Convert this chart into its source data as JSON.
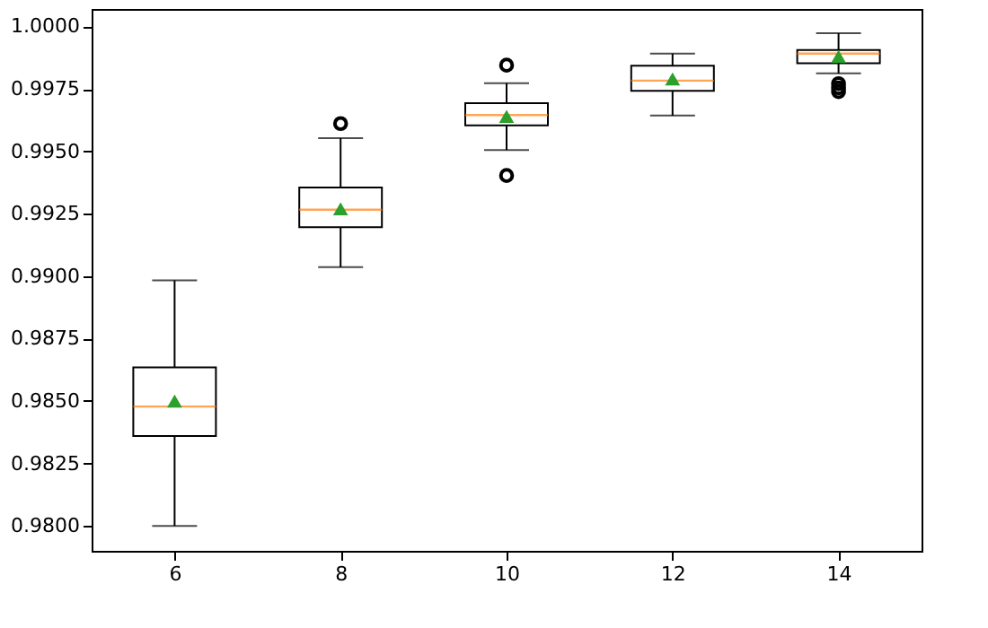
{
  "chart_data": {
    "type": "box",
    "categories": [
      "6",
      "8",
      "10",
      "12",
      "14"
    ],
    "color": "#000000",
    "boxes": [
      {
        "low": 0.98,
        "q1": 0.9836,
        "median": 0.98478,
        "q3": 0.98635,
        "high": 0.98983,
        "mean": 0.985
      },
      {
        "low": 0.99036,
        "q1": 0.99196,
        "median": 0.99266,
        "q3": 0.99355,
        "high": 0.99553,
        "mean": 0.9927,
        "outliers": [
          0.99611
        ]
      },
      {
        "low": 0.99505,
        "q1": 0.99604,
        "median": 0.99645,
        "q3": 0.99693,
        "high": 0.99773,
        "mean": 0.9964,
        "outliers": [
          0.99845,
          0.99403
        ]
      },
      {
        "low": 0.99643,
        "q1": 0.99742,
        "median": 0.99783,
        "q3": 0.99843,
        "high": 0.99891,
        "mean": 0.9979
      },
      {
        "low": 0.99812,
        "q1": 0.99853,
        "median": 0.99891,
        "q3": 0.99906,
        "high": 0.99973,
        "mean": 0.9988,
        "outliers": [
          0.99771,
          0.99754,
          0.99739
        ]
      }
    ],
    "ylim": [
      0.979,
      1.0007
    ],
    "yticks": [
      {
        "value": 0.98,
        "label": "0.9800"
      },
      {
        "value": 0.9825,
        "label": "0.9825"
      },
      {
        "value": 0.985,
        "label": "0.9850"
      },
      {
        "value": 0.9875,
        "label": "0.9875"
      },
      {
        "value": 0.99,
        "label": "0.9900"
      },
      {
        "value": 0.9925,
        "label": "0.9925"
      },
      {
        "value": 0.995,
        "label": "0.9950"
      },
      {
        "value": 0.9975,
        "label": "0.9975"
      },
      {
        "value": 1.0,
        "label": "1.0000"
      }
    ],
    "grid": false
  }
}
